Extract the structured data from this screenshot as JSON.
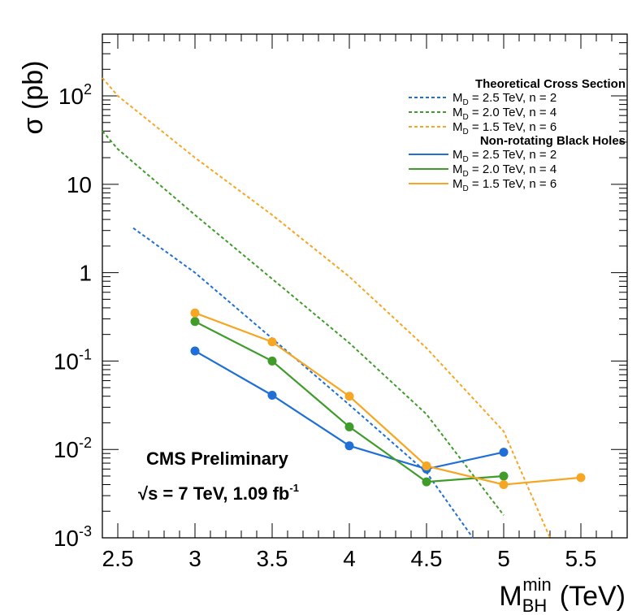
{
  "chart_data": {
    "type": "line",
    "y_scale": "log",
    "xlim": [
      2.4,
      5.8
    ],
    "ylim": [
      0.001,
      500
    ],
    "x_ticks": [
      "2.5",
      "3",
      "3.5",
      "4",
      "4.5",
      "5",
      "5.5"
    ],
    "x_tick_values": [
      2.5,
      3,
      3.5,
      4,
      4.5,
      5,
      5.5
    ],
    "y_ticks": [
      {
        "value": 0.001,
        "base": "10",
        "exp": "-3"
      },
      {
        "value": 0.01,
        "base": "10",
        "exp": "-2"
      },
      {
        "value": 0.1,
        "base": "10",
        "exp": "-1"
      },
      {
        "value": 1,
        "base": "1",
        "exp": ""
      },
      {
        "value": 10,
        "base": "10",
        "exp": ""
      },
      {
        "value": 100,
        "base": "10",
        "exp": "2"
      }
    ],
    "ylabel": "σ (pb)",
    "xlabel": {
      "main": "M",
      "sub": "BH",
      "sup": "min",
      "unit": "(TeV)"
    },
    "annotations": {
      "line1": "CMS Preliminary",
      "line2_sqrt": "√s = 7 TeV, 1.09 fb",
      "line2_sup": "-1"
    },
    "legend": {
      "placement": "top-right",
      "groups": [
        {
          "title": "Theoretical Cross Section",
          "style": "dashed",
          "entries": [
            {
              "pre": "M",
              "sub": "D",
              "post": " = 2.5 TeV, n = 2",
              "color": "#1f6fd6"
            },
            {
              "pre": "M",
              "sub": "D",
              "post": " = 2.0 TeV, n = 4",
              "color": "#3f9c2a"
            },
            {
              "pre": "M",
              "sub": "D",
              "post": " = 1.5 TeV, n = 6",
              "color": "#f5a623"
            }
          ]
        },
        {
          "title": "Non-rotating Black Holes",
          "style": "solid",
          "entries": [
            {
              "pre": "M",
              "sub": "D",
              "post": " = 2.5 TeV, n = 2",
              "color": "#1f6fd6"
            },
            {
              "pre": "M",
              "sub": "D",
              "post": " = 2.0 TeV, n = 4",
              "color": "#3f9c2a"
            },
            {
              "pre": "M",
              "sub": "D",
              "post": " = 1.5 TeV, n = 6",
              "color": "#f5a623"
            }
          ]
        }
      ]
    },
    "series": [
      {
        "group": "theory",
        "style": "dashed",
        "color": "#1f6fd6",
        "x": [
          2.6,
          3.0,
          3.5,
          4.0,
          4.5,
          4.8
        ],
        "y": [
          3.2,
          1.0,
          0.18,
          0.032,
          0.0055,
          0.001
        ]
      },
      {
        "group": "theory",
        "style": "dashed",
        "color": "#3f9c2a",
        "x": [
          2.4,
          2.5,
          3.0,
          3.5,
          4.0,
          4.5,
          5.0
        ],
        "y": [
          40,
          25,
          4.5,
          0.85,
          0.16,
          0.025,
          0.0018
        ]
      },
      {
        "group": "theory",
        "style": "dashed",
        "color": "#f5a623",
        "x": [
          2.4,
          2.5,
          3.0,
          3.5,
          4.0,
          4.5,
          5.0,
          5.3
        ],
        "y": [
          160,
          100,
          20,
          4.5,
          0.9,
          0.14,
          0.016,
          0.001
        ]
      },
      {
        "group": "nonrotating",
        "style": "solid",
        "color": "#1f6fd6",
        "x": [
          3.0,
          3.5,
          4.0,
          4.5,
          5.0
        ],
        "y": [
          0.13,
          0.041,
          0.011,
          0.006,
          0.0093
        ]
      },
      {
        "group": "nonrotating",
        "style": "solid",
        "color": "#3f9c2a",
        "x": [
          3.0,
          3.5,
          4.0,
          4.5,
          5.0
        ],
        "y": [
          0.28,
          0.1,
          0.018,
          0.0043,
          0.005
        ]
      },
      {
        "group": "nonrotating",
        "style": "solid",
        "color": "#f5a623",
        "x": [
          3.0,
          3.5,
          4.0,
          4.5,
          5.0,
          5.5
        ],
        "y": [
          0.35,
          0.165,
          0.04,
          0.0065,
          0.004,
          0.0048
        ]
      }
    ]
  }
}
